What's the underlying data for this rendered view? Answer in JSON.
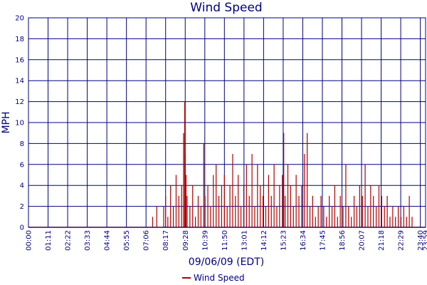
{
  "chart_data": {
    "type": "line",
    "title": "Wind Speed",
    "xlabel": "09/06/09 (EDT)",
    "ylabel": "MPH",
    "ylim": [
      0,
      20
    ],
    "y_ticks": [
      "0",
      "2",
      "4",
      "6",
      "8",
      "10",
      "12",
      "14",
      "16",
      "18",
      "20"
    ],
    "x_ticks": [
      "00:00",
      "01:11",
      "02:22",
      "03:33",
      "04:44",
      "05:55",
      "07:06",
      "08:17",
      "09:28",
      "10:39",
      "11:50",
      "13:01",
      "14:12",
      "15:23",
      "16:34",
      "17:45",
      "18:56",
      "20:07",
      "21:18",
      "22:29",
      "23:40",
      "23:59"
    ],
    "grid": true,
    "legend_position": "bottom-center",
    "series": [
      {
        "name": "Wind Speed",
        "color": "#b00000",
        "x": [
          "07:30",
          "07:45",
          "08:00",
          "08:10",
          "08:17",
          "08:25",
          "08:35",
          "08:45",
          "08:55",
          "09:05",
          "09:15",
          "09:22",
          "09:26",
          "09:28",
          "09:31",
          "09:35",
          "09:45",
          "09:55",
          "10:05",
          "10:15",
          "10:25",
          "10:35",
          "10:40",
          "10:50",
          "11:00",
          "11:10",
          "11:20",
          "11:30",
          "11:40",
          "11:50",
          "12:00",
          "12:10",
          "12:20",
          "12:30",
          "12:40",
          "12:50",
          "13:00",
          "13:10",
          "13:20",
          "13:30",
          "13:40",
          "13:50",
          "14:00",
          "14:10",
          "14:20",
          "14:30",
          "14:40",
          "14:50",
          "15:00",
          "15:10",
          "15:20",
          "15:25",
          "15:30",
          "15:40",
          "15:50",
          "16:00",
          "16:10",
          "16:20",
          "16:30",
          "16:40",
          "16:50",
          "17:00",
          "17:10",
          "17:20",
          "17:30",
          "17:40",
          "17:50",
          "18:00",
          "18:10",
          "18:20",
          "18:30",
          "18:40",
          "18:50",
          "19:00",
          "19:10",
          "19:20",
          "19:30",
          "19:40",
          "19:50",
          "20:00",
          "20:10",
          "20:20",
          "20:30",
          "20:40",
          "20:50",
          "21:00",
          "21:10",
          "21:20",
          "21:30",
          "21:40",
          "21:50",
          "22:00",
          "22:10",
          "22:20",
          "22:30",
          "22:40",
          "22:50",
          "23:00",
          "23:10",
          "23:20"
        ],
        "values": [
          1,
          2,
          0,
          2,
          3,
          1,
          4,
          2,
          5,
          3,
          4,
          9,
          12,
          7,
          5,
          3,
          2,
          4,
          1,
          3,
          2,
          8,
          3,
          4,
          2,
          5,
          6,
          3,
          4,
          5,
          2,
          4,
          7,
          3,
          5,
          2,
          4,
          6,
          3,
          7,
          2,
          6,
          4,
          3,
          2,
          5,
          3,
          6,
          2,
          4,
          5,
          9,
          3,
          6,
          4,
          2,
          5,
          3,
          4,
          7,
          9,
          2,
          3,
          1,
          2,
          3,
          2,
          1,
          3,
          2,
          4,
          1,
          3,
          2,
          6,
          2,
          1,
          3,
          2,
          4,
          3,
          6,
          2,
          4,
          3,
          2,
          4,
          3,
          2,
          3,
          1,
          2,
          1,
          2,
          1,
          2,
          1,
          3,
          1,
          0
        ]
      }
    ]
  }
}
